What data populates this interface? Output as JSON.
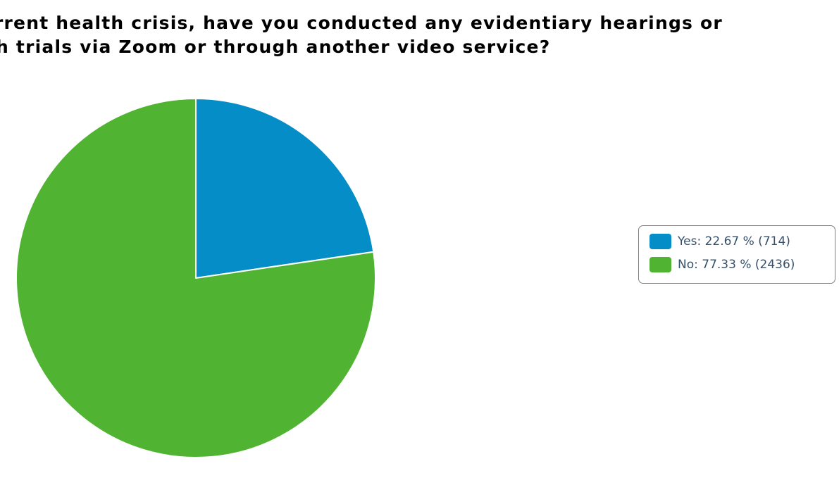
{
  "chart_data": {
    "type": "pie",
    "title_lines": [
      "rrent health crisis, have you conducted any evidentiary hearings or",
      "ch trials via Zoom or through another video service?"
    ],
    "categories": [
      "Yes",
      "No"
    ],
    "values": [
      22.67,
      77.33
    ],
    "counts": [
      714,
      2436
    ],
    "legend_labels": [
      "Yes: 22.67 % (714)",
      "No: 77.33 % (2436)"
    ],
    "colors": [
      "#058dc7",
      "#50b432"
    ],
    "start_angle": "12 o'clock",
    "direction": "clockwise",
    "legend_position": "right"
  }
}
